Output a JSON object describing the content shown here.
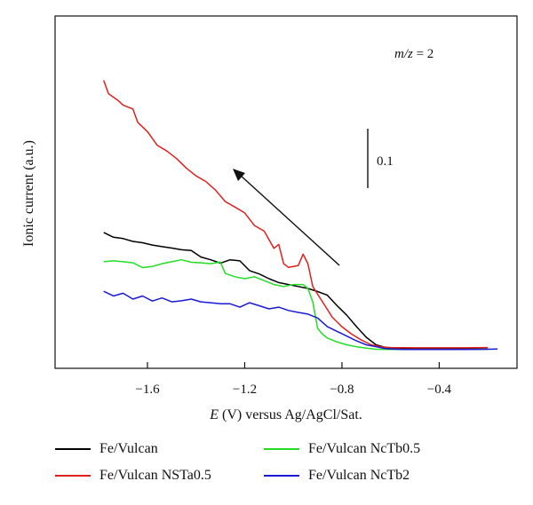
{
  "chart_data": {
    "type": "line",
    "xlabel_italic": "E",
    "xlabel_rest": " (V) versus Ag/AgCl/Sat.",
    "ylabel": "Ionic current (a.u.)",
    "xlim": [
      -1.98,
      -0.08
    ],
    "ylim": [
      0.0,
      1.0
    ],
    "x_ticks": [
      -1.6,
      -1.2,
      -0.8,
      -0.4
    ],
    "x_tick_labels": [
      "−1.6",
      "−1.2",
      "−0.8",
      "−0.4"
    ],
    "annotation": {
      "italic": "m/z",
      "rest": " = 2",
      "scale_bar_label": "0.1",
      "scale_bar_value": 0.1
    },
    "series": [
      {
        "name": "Fe/Vulcan",
        "color": "#000000",
        "x": [
          -1.78,
          -1.74,
          -1.7,
          -1.66,
          -1.62,
          -1.58,
          -1.54,
          -1.5,
          -1.46,
          -1.42,
          -1.38,
          -1.34,
          -1.3,
          -1.26,
          -1.22,
          -1.18,
          -1.14,
          -1.1,
          -1.06,
          -1.02,
          -0.98,
          -0.94,
          -0.9,
          -0.86,
          -0.82,
          -0.78,
          -0.74,
          -0.7,
          -0.66,
          -0.62,
          -0.58,
          -0.5,
          -0.4,
          -0.3,
          -0.2
        ],
        "y": [
          0.427,
          0.41,
          0.405,
          0.395,
          0.39,
          0.382,
          0.376,
          0.371,
          0.365,
          0.362,
          0.339,
          0.329,
          0.317,
          0.329,
          0.325,
          0.29,
          0.278,
          0.261,
          0.247,
          0.24,
          0.233,
          0.226,
          0.215,
          0.202,
          0.164,
          0.13,
          0.089,
          0.051,
          0.024,
          0.014,
          0.01,
          0.009,
          0.009,
          0.009,
          0.009
        ]
      },
      {
        "name": "Fe/Vulcan NSTa0.5",
        "color": "#e0201c",
        "x": [
          -1.78,
          -1.76,
          -1.72,
          -1.7,
          -1.66,
          -1.64,
          -1.6,
          -1.56,
          -1.52,
          -1.48,
          -1.44,
          -1.4,
          -1.36,
          -1.32,
          -1.28,
          -1.24,
          -1.2,
          -1.16,
          -1.12,
          -1.08,
          -1.06,
          -1.04,
          -1.02,
          -0.98,
          -0.96,
          -0.94,
          -0.92,
          -0.9,
          -0.88,
          -0.86,
          -0.84,
          -0.8,
          -0.76,
          -0.72,
          -0.68,
          -0.64,
          -0.6,
          -0.5,
          -0.4,
          -0.3,
          -0.2
        ],
        "y": [
          0.973,
          0.925,
          0.9,
          0.884,
          0.87,
          0.822,
          0.789,
          0.74,
          0.719,
          0.692,
          0.658,
          0.63,
          0.61,
          0.579,
          0.538,
          0.518,
          0.497,
          0.452,
          0.432,
          0.37,
          0.384,
          0.315,
          0.302,
          0.308,
          0.349,
          0.315,
          0.233,
          0.205,
          0.178,
          0.151,
          0.123,
          0.089,
          0.062,
          0.041,
          0.024,
          0.017,
          0.014,
          0.013,
          0.013,
          0.013,
          0.014
        ]
      },
      {
        "name": "Fe/Vulcan NcTb0.5",
        "color": "#22dd22",
        "x": [
          -1.78,
          -1.74,
          -1.7,
          -1.66,
          -1.62,
          -1.58,
          -1.54,
          -1.5,
          -1.46,
          -1.42,
          -1.38,
          -1.34,
          -1.3,
          -1.28,
          -1.24,
          -1.2,
          -1.16,
          -1.12,
          -1.08,
          -1.04,
          -1.0,
          -0.96,
          -0.94,
          -0.92,
          -0.9,
          -0.88,
          -0.86,
          -0.82,
          -0.78,
          -0.74,
          -0.7,
          -0.66,
          -0.6,
          -0.5,
          -0.4,
          -0.3,
          -0.2
        ],
        "y": [
          0.322,
          0.325,
          0.322,
          0.318,
          0.301,
          0.305,
          0.315,
          0.322,
          0.329,
          0.32,
          0.318,
          0.315,
          0.321,
          0.28,
          0.268,
          0.261,
          0.268,
          0.254,
          0.24,
          0.233,
          0.24,
          0.24,
          0.226,
          0.178,
          0.082,
          0.062,
          0.048,
          0.034,
          0.024,
          0.017,
          0.012,
          0.008,
          0.007,
          0.007,
          0.007,
          0.007,
          0.008
        ]
      },
      {
        "name": "Fe/Vulcan NcTb2",
        "color": "#1a1ad4",
        "x": [
          -1.78,
          -1.74,
          -1.7,
          -1.66,
          -1.62,
          -1.58,
          -1.54,
          -1.5,
          -1.46,
          -1.42,
          -1.38,
          -1.34,
          -1.3,
          -1.26,
          -1.22,
          -1.18,
          -1.14,
          -1.1,
          -1.06,
          -1.02,
          -0.98,
          -0.94,
          -0.9,
          -0.86,
          -0.82,
          -0.78,
          -0.74,
          -0.7,
          -0.66,
          -0.62,
          -0.55,
          -0.5,
          -0.4,
          -0.3,
          -0.2,
          -0.16
        ],
        "y": [
          0.216,
          0.199,
          0.209,
          0.188,
          0.199,
          0.181,
          0.192,
          0.178,
          0.182,
          0.188,
          0.178,
          0.175,
          0.171,
          0.171,
          0.159,
          0.175,
          0.164,
          0.153,
          0.159,
          0.147,
          0.14,
          0.134,
          0.12,
          0.089,
          0.072,
          0.055,
          0.038,
          0.024,
          0.017,
          0.01,
          0.007,
          0.007,
          0.007,
          0.007,
          0.008,
          0.009
        ]
      }
    ]
  }
}
